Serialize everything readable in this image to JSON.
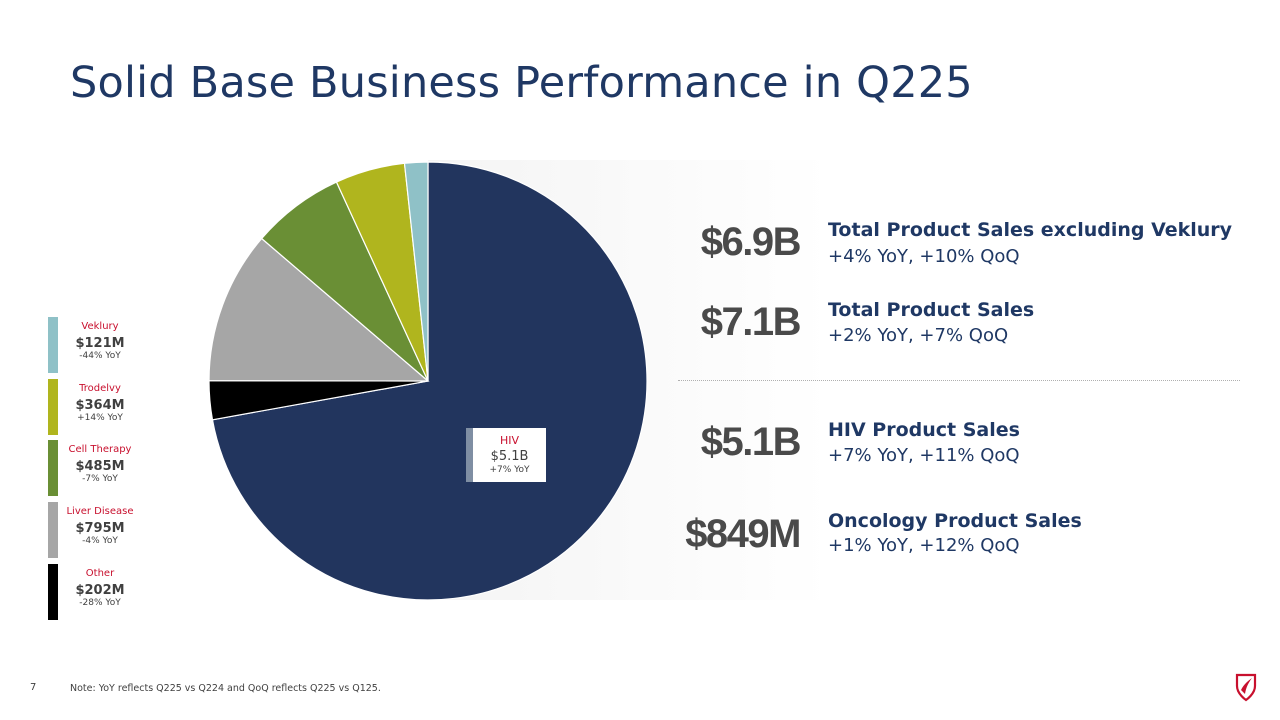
{
  "title": "Solid Base Business Performance in Q225",
  "chart_data": {
    "type": "pie",
    "start_angle_deg": 0,
    "direction": "clockwise",
    "slices": [
      {
        "label": "HIV",
        "value": 5.1,
        "value_text": "$5.1B",
        "yoy": "+7% YoY",
        "color": "#22355e"
      },
      {
        "label": "Other",
        "value": 0.202,
        "value_text": "$202M",
        "yoy": "-28% YoY",
        "color": "#000000"
      },
      {
        "label": "Liver Disease",
        "value": 0.795,
        "value_text": "$795M",
        "yoy": "-4% YoY",
        "color": "#a6a6a6"
      },
      {
        "label": "Cell Therapy",
        "value": 0.485,
        "value_text": "$485M",
        "yoy": "-7% YoY",
        "color": "#6a8f35"
      },
      {
        "label": "Trodelvy",
        "value": 0.364,
        "value_text": "$364M",
        "yoy": "+14% YoY",
        "color": "#b0b51e"
      },
      {
        "label": "Veklury",
        "value": 0.121,
        "value_text": "$121M",
        "yoy": "-44% YoY",
        "color": "#8fc1c7"
      }
    ]
  },
  "legend": [
    {
      "name": "Veklury",
      "value": "$121M",
      "yoy": "-44% YoY",
      "color": "#8fc1c7"
    },
    {
      "name": "Trodelvy",
      "value": "$364M",
      "yoy": "+14% YoY",
      "color": "#b0b51e"
    },
    {
      "name": "Cell Therapy",
      "value": "$485M",
      "yoy": "-7% YoY",
      "color": "#6a8f35"
    },
    {
      "name": "Liver Disease",
      "value": "$795M",
      "yoy": "-4% YoY",
      "color": "#a6a6a6"
    },
    {
      "name": "Other",
      "value": "$202M",
      "yoy": "-28% YoY",
      "color": "#000000"
    }
  ],
  "hiv_callout": {
    "name": "HIV",
    "value": "$5.1B",
    "yoy": "+7% YoY"
  },
  "metrics": [
    {
      "big": "$6.9B",
      "label": "Total Product Sales excluding Veklury",
      "sub": "+4% YoY, +10% QoQ"
    },
    {
      "big": "$7.1B",
      "label": "Total Product Sales",
      "sub": "+2% YoY, +7% QoQ"
    },
    {
      "big": "$5.1B",
      "label": "HIV Product Sales",
      "sub": "+7% YoY, +11% QoQ"
    },
    {
      "big": "$849M",
      "label": "Oncology Product Sales",
      "sub": "+1% YoY, +12% QoQ"
    }
  ],
  "page_number": "7",
  "footnote": "Note: YoY reflects Q225 vs Q224 and QoQ reflects Q225 vs Q125."
}
